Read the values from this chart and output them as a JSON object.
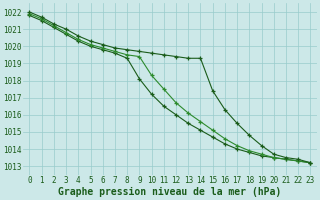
{
  "hours": [
    0,
    1,
    2,
    3,
    4,
    5,
    6,
    7,
    8,
    9,
    10,
    11,
    12,
    13,
    14,
    15,
    16,
    17,
    18,
    19,
    20,
    21,
    22,
    23
  ],
  "line1": [
    1021.8,
    1021.5,
    1021.1,
    1020.7,
    1020.3,
    1020.0,
    1019.8,
    1019.6,
    1019.3,
    1018.1,
    1017.2,
    1016.5,
    1016.0,
    1015.5,
    1015.1,
    1014.7,
    1014.3,
    1014.0,
    1013.8,
    1013.6,
    1013.5,
    1013.4,
    1013.3,
    1013.2
  ],
  "line2": [
    1021.9,
    1021.6,
    1021.2,
    1020.8,
    1020.4,
    1020.1,
    1019.9,
    1019.7,
    1019.5,
    1019.4,
    1018.3,
    1017.5,
    1016.7,
    1016.1,
    1015.6,
    1015.1,
    1014.6,
    1014.2,
    1013.9,
    1013.7,
    1013.5,
    1013.4,
    1013.3,
    1013.2
  ],
  "line3": [
    1022.0,
    1021.7,
    1021.3,
    1021.0,
    1020.6,
    1020.3,
    1020.1,
    1019.9,
    1019.8,
    1019.7,
    1019.6,
    1019.5,
    1019.4,
    1019.3,
    1019.3,
    1017.4,
    1016.3,
    1015.5,
    1014.8,
    1014.2,
    1013.7,
    1013.5,
    1013.4,
    1013.2
  ],
  "bg_color": "#cce8e8",
  "grid_color": "#99cccc",
  "line_color_dark": "#1a5c1a",
  "line_color_mid": "#2d8b2d",
  "ylim_min": 1012.5,
  "ylim_max": 1022.5,
  "yticks": [
    1013,
    1014,
    1015,
    1016,
    1017,
    1018,
    1019,
    1020,
    1021,
    1022
  ],
  "xlabel": "Graphe pression niveau de la mer (hPa)",
  "xlabel_fontsize": 7.0,
  "tick_fontsize": 5.5
}
